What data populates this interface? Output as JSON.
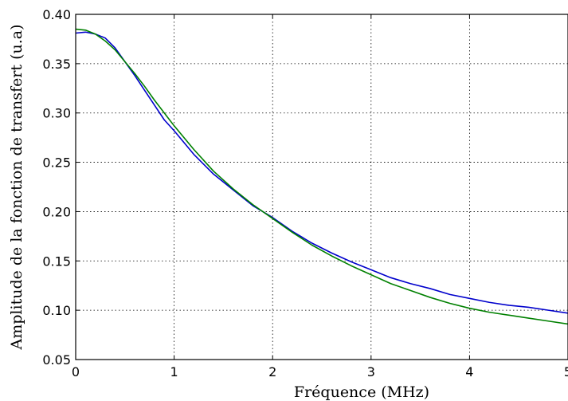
{
  "chart_data": {
    "type": "line",
    "title": "",
    "xlabel": "Fréquence (MHz)",
    "ylabel": "Amplitude de la fonction de transfert (u.a)",
    "xlim": [
      0,
      5
    ],
    "ylim": [
      0.05,
      0.4
    ],
    "xticks": [
      0,
      1,
      2,
      3,
      4,
      5
    ],
    "xtick_labels": [
      "0",
      "1",
      "2",
      "3",
      "4",
      "5"
    ],
    "yticks": [
      0.05,
      0.1,
      0.15,
      0.2,
      0.25,
      0.3,
      0.35,
      0.4
    ],
    "ytick_labels": [
      "0.05",
      "0.10",
      "0.15",
      "0.20",
      "0.25",
      "0.30",
      "0.35",
      "0.40"
    ],
    "grid": true,
    "legend": "none",
    "series": [
      {
        "color": "#0000cc",
        "x": [
          0,
          0.1,
          0.2,
          0.3,
          0.4,
          0.5,
          0.6,
          0.7,
          0.8,
          0.9,
          1.0,
          1.2,
          1.4,
          1.6,
          1.8,
          2.0,
          2.2,
          2.4,
          2.6,
          2.8,
          3.0,
          3.2,
          3.4,
          3.6,
          3.8,
          4.0,
          4.2,
          4.4,
          4.6,
          4.8,
          5.0
        ],
        "y": [
          0.381,
          0.382,
          0.38,
          0.376,
          0.366,
          0.352,
          0.338,
          0.323,
          0.308,
          0.293,
          0.282,
          0.258,
          0.238,
          0.222,
          0.206,
          0.194,
          0.18,
          0.168,
          0.158,
          0.149,
          0.141,
          0.133,
          0.127,
          0.122,
          0.116,
          0.112,
          0.108,
          0.105,
          0.103,
          0.1,
          0.097
        ]
      },
      {
        "color": "#008000",
        "x": [
          0,
          0.1,
          0.2,
          0.3,
          0.4,
          0.5,
          0.6,
          0.7,
          0.8,
          0.9,
          1.0,
          1.2,
          1.4,
          1.6,
          1.8,
          2.0,
          2.2,
          2.4,
          2.6,
          2.8,
          3.0,
          3.2,
          3.4,
          3.6,
          3.8,
          4.0,
          4.2,
          4.4,
          4.6,
          4.8,
          5.0
        ],
        "y": [
          0.385,
          0.384,
          0.38,
          0.373,
          0.364,
          0.352,
          0.34,
          0.327,
          0.313,
          0.3,
          0.287,
          0.263,
          0.241,
          0.223,
          0.207,
          0.193,
          0.179,
          0.166,
          0.155,
          0.145,
          0.136,
          0.127,
          0.12,
          0.113,
          0.107,
          0.102,
          0.098,
          0.095,
          0.092,
          0.089,
          0.086
        ]
      }
    ]
  }
}
